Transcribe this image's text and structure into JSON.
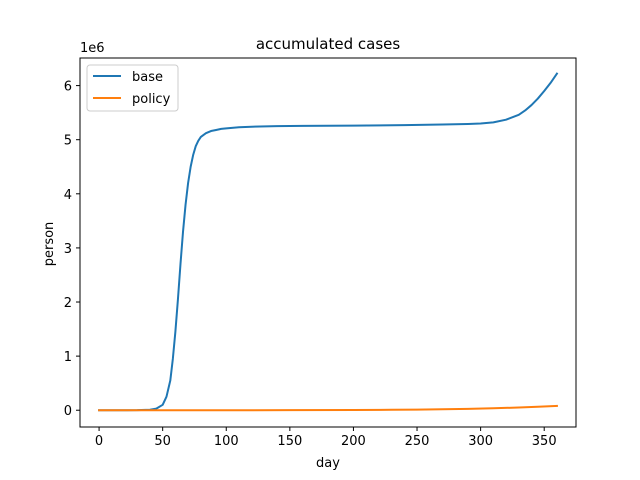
{
  "chart_data": {
    "type": "line",
    "title": "accumulated cases",
    "xlabel": "day",
    "ylabel": "person",
    "y_offset_label": "1e6",
    "xlim": [
      -15,
      375
    ],
    "ylim": [
      -0.31,
      6.51
    ],
    "xticks": [
      0,
      50,
      100,
      150,
      200,
      250,
      300,
      350
    ],
    "yticks": [
      0,
      1,
      2,
      3,
      4,
      5,
      6
    ],
    "grid": false,
    "legend_position": "top-left",
    "series": [
      {
        "name": "base",
        "color": "#1f77b4",
        "x": [
          0,
          10,
          20,
          30,
          40,
          45,
          50,
          53,
          56,
          58,
          60,
          62,
          64,
          66,
          68,
          70,
          72,
          74,
          76,
          78,
          80,
          84,
          88,
          92,
          96,
          100,
          110,
          120,
          140,
          160,
          200,
          240,
          270,
          290,
          300,
          310,
          320,
          330,
          335,
          340,
          345,
          350,
          355,
          360
        ],
        "y": [
          0,
          0,
          0,
          0.002,
          0.01,
          0.03,
          0.1,
          0.25,
          0.55,
          0.95,
          1.45,
          2.05,
          2.7,
          3.3,
          3.8,
          4.2,
          4.5,
          4.72,
          4.88,
          4.98,
          5.05,
          5.12,
          5.16,
          5.18,
          5.2,
          5.21,
          5.23,
          5.24,
          5.25,
          5.255,
          5.26,
          5.27,
          5.28,
          5.29,
          5.3,
          5.32,
          5.37,
          5.46,
          5.54,
          5.64,
          5.76,
          5.9,
          6.05,
          6.22
        ]
      },
      {
        "name": "policy",
        "color": "#ff7f0e",
        "x": [
          0,
          50,
          100,
          150,
          200,
          230,
          250,
          270,
          290,
          310,
          330,
          345,
          360
        ],
        "y": [
          0,
          0,
          0,
          0.001,
          0.004,
          0.008,
          0.012,
          0.018,
          0.026,
          0.036,
          0.05,
          0.065,
          0.08
        ]
      }
    ]
  }
}
